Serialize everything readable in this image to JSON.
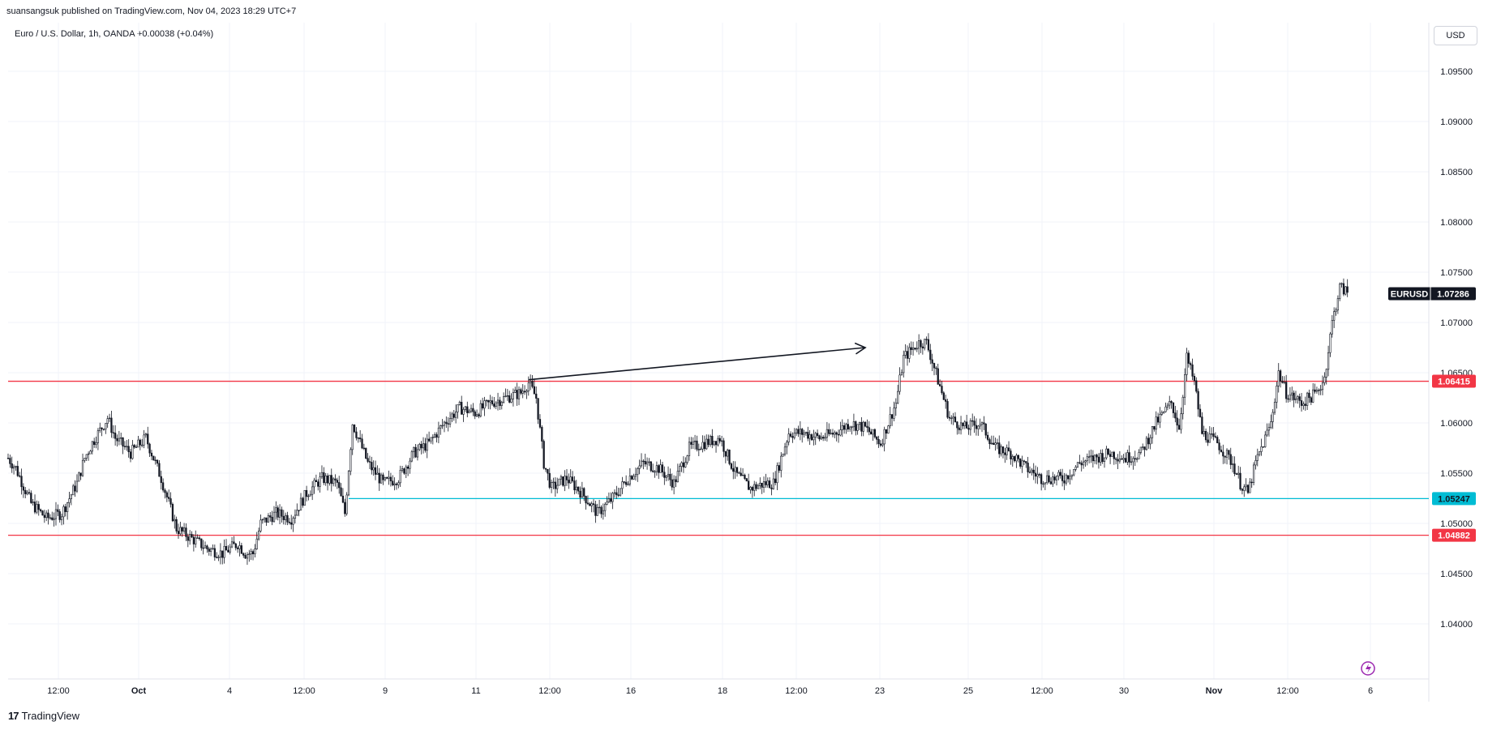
{
  "header": {
    "publisher": "suansangsuk published on TradingView.com, Nov 04, 2023 18:29 UTC+7",
    "symbol_info": "Euro / U.S. Dollar, 1h, OANDA  +0.00038 (+0.04%)",
    "currency": "USD"
  },
  "footer": {
    "brand": "TradingView",
    "brand_icon": "tradingview-logo-icon"
  },
  "colors": {
    "candle": "#131722",
    "support_resistance": "#f23645",
    "neutral_level": "#00bcd4",
    "grid": "#f0f3fa",
    "price_tag": "#131722"
  },
  "chart_data": {
    "type": "candlestick",
    "symbol": "EURUSD",
    "timeframe": "1h",
    "ylim": [
      1.035,
      1.0993
    ],
    "grid": true,
    "y_ticks": [
      "1.04000",
      "1.04500",
      "1.05000",
      "1.05500",
      "1.06000",
      "1.06500",
      "1.07000",
      "1.07500",
      "1.08000",
      "1.08500",
      "1.09000",
      "1.09500"
    ],
    "x_ticks": [
      "12:00",
      "Oct",
      "4",
      "12:00",
      "9",
      "11",
      "12:00",
      "16",
      "18",
      "12:00",
      "23",
      "25",
      "12:00",
      "30",
      "Nov",
      "12:00",
      "6"
    ],
    "price_path": [
      [
        0,
        1.0565
      ],
      [
        1,
        1.0555
      ],
      [
        3,
        1.052
      ],
      [
        5,
        1.0505
      ],
      [
        7,
        1.051
      ],
      [
        9,
        1.054
      ],
      [
        10,
        1.0565
      ],
      [
        11,
        1.058
      ],
      [
        13,
        1.0605
      ],
      [
        14,
        1.0585
      ],
      [
        16,
        1.057
      ],
      [
        18,
        1.0585
      ],
      [
        20,
        1.0545
      ],
      [
        22,
        1.0495
      ],
      [
        24,
        1.0485
      ],
      [
        26,
        1.0475
      ],
      [
        28,
        1.047
      ],
      [
        30,
        1.048
      ],
      [
        31,
        1.047
      ],
      [
        32,
        1.047
      ],
      [
        33,
        1.05
      ],
      [
        35,
        1.051
      ],
      [
        37,
        1.0505
      ],
      [
        39,
        1.053
      ],
      [
        41,
        1.0545
      ],
      [
        43,
        1.054
      ],
      [
        44,
        1.051
      ],
      [
        45,
        1.06
      ],
      [
        47,
        1.056
      ],
      [
        49,
        1.054
      ],
      [
        51,
        1.0545
      ],
      [
        53,
        1.057
      ],
      [
        55,
        1.058
      ],
      [
        57,
        1.06
      ],
      [
        59,
        1.0615
      ],
      [
        61,
        1.061
      ],
      [
        63,
        1.062
      ],
      [
        65,
        1.0625
      ],
      [
        67,
        1.063
      ],
      [
        68,
        1.064
      ],
      [
        69,
        1.0625
      ],
      [
        70,
        1.056
      ],
      [
        71,
        1.0535
      ],
      [
        73,
        1.0545
      ],
      [
        75,
        1.053
      ],
      [
        77,
        1.051
      ],
      [
        79,
        1.0525
      ],
      [
        81,
        1.0545
      ],
      [
        83,
        1.056
      ],
      [
        85,
        1.0555
      ],
      [
        87,
        1.054
      ],
      [
        89,
        1.0575
      ],
      [
        91,
        1.058
      ],
      [
        93,
        1.0585
      ],
      [
        95,
        1.055
      ],
      [
        97,
        1.0535
      ],
      [
        99,
        1.054
      ],
      [
        100,
        1.054
      ],
      [
        102,
        1.059
      ],
      [
        104,
        1.059
      ],
      [
        106,
        1.0585
      ],
      [
        108,
        1.059
      ],
      [
        110,
        1.06
      ],
      [
        112,
        1.0595
      ],
      [
        114,
        1.058
      ],
      [
        116,
        1.062
      ],
      [
        117,
        1.0665
      ],
      [
        119,
        1.068
      ],
      [
        120,
        1.068
      ],
      [
        121,
        1.0655
      ],
      [
        122,
        1.063
      ],
      [
        123,
        1.0605
      ],
      [
        125,
        1.0595
      ],
      [
        127,
        1.06
      ],
      [
        129,
        1.0575
      ],
      [
        131,
        1.057
      ],
      [
        133,
        1.0555
      ],
      [
        135,
        1.0545
      ],
      [
        136,
        1.0545
      ],
      [
        138,
        1.0545
      ],
      [
        140,
        1.056
      ],
      [
        142,
        1.0565
      ],
      [
        144,
        1.057
      ],
      [
        146,
        1.0565
      ],
      [
        148,
        1.057
      ],
      [
        150,
        1.06
      ],
      [
        152,
        1.062
      ],
      [
        153,
        1.0595
      ],
      [
        154,
        1.0665
      ],
      [
        155,
        1.064
      ],
      [
        156,
        1.059
      ],
      [
        158,
        1.058
      ],
      [
        160,
        1.056
      ],
      [
        161,
        1.054
      ],
      [
        162,
        1.053
      ],
      [
        163,
        1.056
      ],
      [
        165,
        1.06
      ],
      [
        166,
        1.065
      ],
      [
        167,
        1.063
      ],
      [
        169,
        1.062
      ],
      [
        171,
        1.063
      ],
      [
        172,
        1.0645
      ],
      [
        173,
        1.07
      ],
      [
        174,
        1.0735
      ],
      [
        175,
        1.073
      ]
    ],
    "levels": [
      {
        "price": 1.06415,
        "label": "1.06415",
        "color": "#f23645",
        "line": "full"
      },
      {
        "price": 1.05247,
        "label": "1.05247",
        "color": "#00bcd4",
        "line": "from-oct-8"
      },
      {
        "price": 1.04882,
        "label": "1.04882",
        "color": "#f23645",
        "line": "full"
      }
    ],
    "last_price": {
      "symbol": "EURUSD",
      "value": 1.07286,
      "label": "1.07286"
    },
    "annotation": {
      "type": "arrow",
      "from": [
        68,
        1.0643
      ],
      "to": [
        112,
        1.0675
      ]
    }
  }
}
